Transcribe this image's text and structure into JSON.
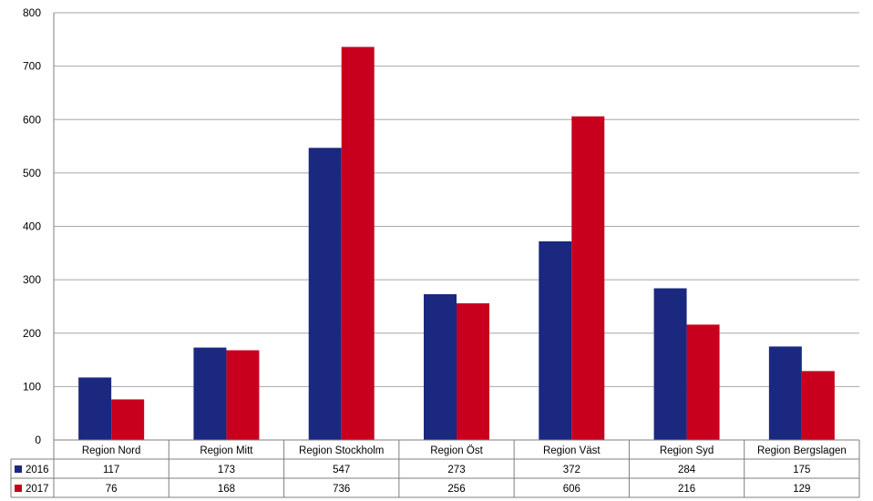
{
  "chart_data": {
    "type": "bar",
    "categories": [
      "Region Nord",
      "Region Mitt",
      "Region Stockholm",
      "Region Öst",
      "Region Väst",
      "Region Syd",
      "Region Bergslagen"
    ],
    "series": [
      {
        "name": "2016",
        "color": "#1a2880",
        "values": [
          117,
          173,
          547,
          273,
          372,
          284,
          175
        ]
      },
      {
        "name": "2017",
        "color": "#c8001e",
        "values": [
          76,
          168,
          736,
          256,
          606,
          216,
          129
        ]
      }
    ],
    "ylim": [
      0,
      800
    ],
    "yticks": [
      "0",
      "100",
      "200",
      "300",
      "400",
      "500",
      "600",
      "700",
      "800"
    ],
    "grid": true,
    "legend": "data-table",
    "title": "",
    "xlabel": "",
    "ylabel": ""
  }
}
